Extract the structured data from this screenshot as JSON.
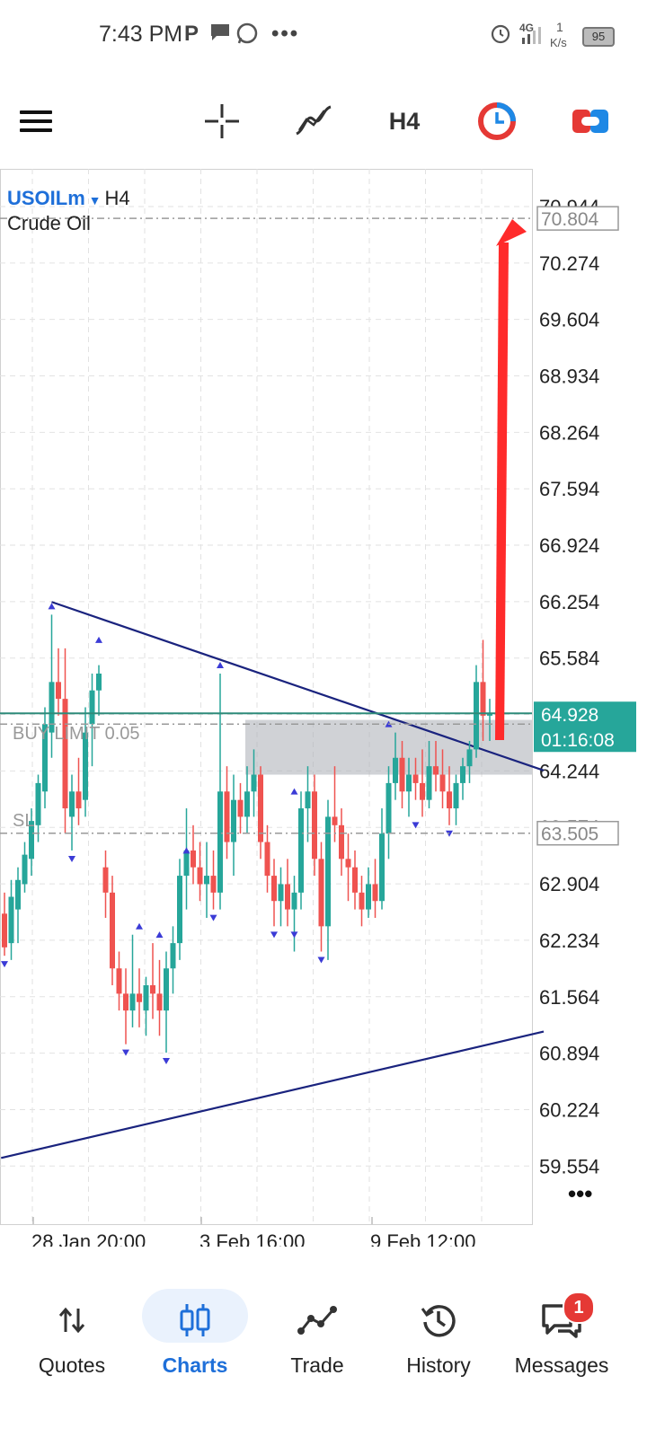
{
  "status_bar": {
    "time": "7:43 PM",
    "net_type": "4G",
    "speed_value": "1",
    "speed_unit": "K/s",
    "battery": "95",
    "icons": [
      "parking-icon",
      "chat-icon",
      "whatsapp-icon",
      "more-dots-icon",
      "alarm-icon",
      "signal-icon"
    ]
  },
  "toolbar": {
    "timeframe": "H4",
    "icons": [
      "menu-icon",
      "crosshair-icon",
      "indicators-icon",
      "timeframe-label",
      "clock-icon",
      "trade-toggle-icon"
    ]
  },
  "chart": {
    "symbol": "USOILm",
    "symbol_tf": "H4",
    "description": "Crude Oil",
    "buy_limit_label": "BUY LIMIT 0.05",
    "sl_label": "SL",
    "current_price": "64.928",
    "countdown": "01:16:08",
    "target_price": "70.804",
    "sl_price": "63.505",
    "price_labels": [
      "70.944",
      "70.274",
      "69.604",
      "68.934",
      "68.264",
      "67.594",
      "66.924",
      "66.254",
      "65.584",
      "64.914",
      "64.244",
      "63.574",
      "62.904",
      "62.234",
      "61.564",
      "60.894",
      "60.224",
      "59.554"
    ],
    "time_labels": [
      "28 Jan 20:00",
      "3 Feb 16:00",
      "9 Feb 12:00"
    ],
    "colors": {
      "bull": "#26a69a",
      "bear": "#ef5350",
      "trendline": "#1a237e",
      "arrow": "#ff2b2b",
      "current_price_bg": "#26a69a",
      "zone": "#b0b4ba"
    }
  },
  "chart_data": {
    "type": "candlestick",
    "symbol": "USOILm",
    "timeframe": "H4",
    "y_axis": {
      "range": [
        59.4,
        71.1
      ],
      "step": 0.67
    },
    "x_ticks": [
      "28 Jan 20:00",
      "3 Feb 16:00",
      "9 Feb 12:00"
    ],
    "candles": [
      {
        "o": 62.55,
        "h": 62.8,
        "l": 62.05,
        "c": 62.15
      },
      {
        "o": 62.2,
        "h": 62.95,
        "l": 62.0,
        "c": 62.75
      },
      {
        "o": 62.6,
        "h": 63.1,
        "l": 62.2,
        "c": 62.95
      },
      {
        "o": 62.9,
        "h": 63.4,
        "l": 62.8,
        "c": 63.25
      },
      {
        "o": 63.2,
        "h": 63.8,
        "l": 63.0,
        "c": 63.65
      },
      {
        "o": 63.6,
        "h": 64.2,
        "l": 63.4,
        "c": 64.1
      },
      {
        "o": 64.0,
        "h": 65.0,
        "l": 63.8,
        "c": 64.8
      },
      {
        "o": 64.7,
        "h": 66.1,
        "l": 64.4,
        "c": 65.3
      },
      {
        "o": 65.3,
        "h": 65.7,
        "l": 64.9,
        "c": 65.1
      },
      {
        "o": 65.1,
        "h": 65.7,
        "l": 63.5,
        "c": 63.8
      },
      {
        "o": 63.7,
        "h": 64.2,
        "l": 63.3,
        "c": 64.0
      },
      {
        "o": 64.0,
        "h": 64.4,
        "l": 63.6,
        "c": 63.8
      },
      {
        "o": 63.9,
        "h": 65.0,
        "l": 63.7,
        "c": 64.7
      },
      {
        "o": 64.8,
        "h": 65.4,
        "l": 64.3,
        "c": 65.2
      },
      {
        "o": 65.2,
        "h": 65.5,
        "l": 64.9,
        "c": 65.4
      },
      {
        "o": 63.1,
        "h": 63.3,
        "l": 62.5,
        "c": 62.8
      },
      {
        "o": 62.8,
        "h": 63.0,
        "l": 61.7,
        "c": 61.9
      },
      {
        "o": 61.9,
        "h": 62.1,
        "l": 61.4,
        "c": 61.6
      },
      {
        "o": 61.6,
        "h": 61.9,
        "l": 61.0,
        "c": 61.4
      },
      {
        "o": 61.4,
        "h": 62.3,
        "l": 61.2,
        "c": 61.6
      },
      {
        "o": 61.6,
        "h": 61.9,
        "l": 61.2,
        "c": 61.5
      },
      {
        "o": 61.4,
        "h": 61.8,
        "l": 61.1,
        "c": 61.7
      },
      {
        "o": 61.7,
        "h": 62.2,
        "l": 61.3,
        "c": 61.6
      },
      {
        "o": 61.6,
        "h": 62.0,
        "l": 61.1,
        "c": 61.4
      },
      {
        "o": 61.4,
        "h": 62.1,
        "l": 60.9,
        "c": 61.9
      },
      {
        "o": 61.9,
        "h": 62.4,
        "l": 61.6,
        "c": 62.2
      },
      {
        "o": 62.2,
        "h": 63.2,
        "l": 62.0,
        "c": 63.0
      },
      {
        "o": 63.0,
        "h": 63.8,
        "l": 62.6,
        "c": 63.3
      },
      {
        "o": 63.3,
        "h": 63.6,
        "l": 62.9,
        "c": 63.1
      },
      {
        "o": 63.1,
        "h": 63.4,
        "l": 62.7,
        "c": 62.9
      },
      {
        "o": 62.9,
        "h": 63.4,
        "l": 62.5,
        "c": 63.0
      },
      {
        "o": 63.0,
        "h": 63.3,
        "l": 62.6,
        "c": 62.8
      },
      {
        "o": 62.8,
        "h": 65.4,
        "l": 62.6,
        "c": 64.0
      },
      {
        "o": 64.0,
        "h": 64.3,
        "l": 63.2,
        "c": 63.4
      },
      {
        "o": 63.4,
        "h": 64.2,
        "l": 63.0,
        "c": 63.9
      },
      {
        "o": 63.9,
        "h": 64.1,
        "l": 63.5,
        "c": 63.7
      },
      {
        "o": 63.7,
        "h": 64.3,
        "l": 63.5,
        "c": 64.0
      },
      {
        "o": 64.0,
        "h": 64.5,
        "l": 63.7,
        "c": 64.2
      },
      {
        "o": 64.2,
        "h": 64.3,
        "l": 63.2,
        "c": 63.4
      },
      {
        "o": 63.4,
        "h": 63.6,
        "l": 62.8,
        "c": 63.0
      },
      {
        "o": 63.0,
        "h": 63.2,
        "l": 62.4,
        "c": 62.7
      },
      {
        "o": 62.7,
        "h": 63.1,
        "l": 62.4,
        "c": 62.9
      },
      {
        "o": 62.9,
        "h": 63.2,
        "l": 62.4,
        "c": 62.6
      },
      {
        "o": 62.6,
        "h": 63.0,
        "l": 62.1,
        "c": 62.8
      },
      {
        "o": 62.8,
        "h": 64.0,
        "l": 62.6,
        "c": 63.8
      },
      {
        "o": 63.8,
        "h": 64.3,
        "l": 63.4,
        "c": 64.0
      },
      {
        "o": 64.0,
        "h": 64.2,
        "l": 63.0,
        "c": 63.2
      },
      {
        "o": 63.2,
        "h": 63.4,
        "l": 62.1,
        "c": 62.4
      },
      {
        "o": 62.4,
        "h": 63.9,
        "l": 62.0,
        "c": 63.7
      },
      {
        "o": 63.7,
        "h": 64.3,
        "l": 63.4,
        "c": 63.6
      },
      {
        "o": 63.6,
        "h": 63.8,
        "l": 63.0,
        "c": 63.2
      },
      {
        "o": 63.2,
        "h": 63.5,
        "l": 62.7,
        "c": 63.1
      },
      {
        "o": 63.1,
        "h": 63.3,
        "l": 62.6,
        "c": 62.8
      },
      {
        "o": 62.8,
        "h": 63.0,
        "l": 62.4,
        "c": 62.6
      },
      {
        "o": 62.6,
        "h": 63.1,
        "l": 62.5,
        "c": 62.9
      },
      {
        "o": 62.9,
        "h": 63.2,
        "l": 62.5,
        "c": 62.7
      },
      {
        "o": 62.7,
        "h": 63.8,
        "l": 62.6,
        "c": 63.5
      },
      {
        "o": 63.5,
        "h": 64.3,
        "l": 63.2,
        "c": 64.1
      },
      {
        "o": 64.1,
        "h": 64.7,
        "l": 63.9,
        "c": 64.4
      },
      {
        "o": 64.4,
        "h": 64.6,
        "l": 63.8,
        "c": 64.0
      },
      {
        "o": 64.0,
        "h": 64.4,
        "l": 63.7,
        "c": 64.2
      },
      {
        "o": 64.2,
        "h": 64.4,
        "l": 63.9,
        "c": 64.1
      },
      {
        "o": 64.1,
        "h": 64.5,
        "l": 63.7,
        "c": 63.9
      },
      {
        "o": 63.9,
        "h": 64.6,
        "l": 63.8,
        "c": 64.3
      },
      {
        "o": 64.3,
        "h": 64.6,
        "l": 64.0,
        "c": 64.2
      },
      {
        "o": 64.2,
        "h": 64.5,
        "l": 63.8,
        "c": 64.0
      },
      {
        "o": 64.0,
        "h": 64.3,
        "l": 63.6,
        "c": 63.8
      },
      {
        "o": 63.8,
        "h": 64.2,
        "l": 63.6,
        "c": 64.1
      },
      {
        "o": 64.1,
        "h": 64.4,
        "l": 63.9,
        "c": 64.3
      },
      {
        "o": 64.3,
        "h": 64.6,
        "l": 64.1,
        "c": 64.5
      },
      {
        "o": 64.5,
        "h": 65.5,
        "l": 64.4,
        "c": 65.3
      },
      {
        "o": 65.3,
        "h": 65.8,
        "l": 64.6,
        "c": 64.9
      },
      {
        "o": 64.9,
        "h": 65.1,
        "l": 64.6,
        "c": 64.93
      }
    ],
    "fractals_up": [
      [
        7,
        66.1
      ],
      [
        14,
        65.7
      ],
      [
        27,
        63.2
      ],
      [
        20,
        62.3
      ],
      [
        23,
        62.2
      ],
      [
        32,
        65.4
      ],
      [
        43,
        63.9
      ],
      [
        57,
        64.7
      ]
    ],
    "fractals_down": [
      [
        0,
        62.05
      ],
      [
        10,
        63.3
      ],
      [
        18,
        61.0
      ],
      [
        24,
        60.9
      ],
      [
        31,
        62.6
      ],
      [
        40,
        62.4
      ],
      [
        47,
        62.1
      ],
      [
        43,
        62.4
      ],
      [
        61,
        63.7
      ],
      [
        66,
        63.6
      ]
    ],
    "trendlines": [
      {
        "from": [
          7,
          66.25
        ],
        "to": [
          80,
          64.25
        ]
      },
      {
        "from": [
          -0.5,
          59.65
        ],
        "to": [
          80,
          61.15
        ]
      }
    ],
    "zone": {
      "x0": 36,
      "x1": 80,
      "y_top": 64.85,
      "y_bottom": 64.2
    },
    "levels": {
      "current": 64.928,
      "buy_limit": 64.8,
      "stop_loss": 63.505,
      "target": 70.804
    }
  },
  "bottom_nav": {
    "items": [
      {
        "label": "Quotes",
        "icon": "quotes-arrows-icon"
      },
      {
        "label": "Charts",
        "icon": "charts-candles-icon"
      },
      {
        "label": "Trade",
        "icon": "trade-line-icon"
      },
      {
        "label": "History",
        "icon": "history-clock-icon"
      },
      {
        "label": "Messages",
        "icon": "messages-bubble-icon"
      }
    ],
    "active_index": 1,
    "messages_badge": "1"
  }
}
